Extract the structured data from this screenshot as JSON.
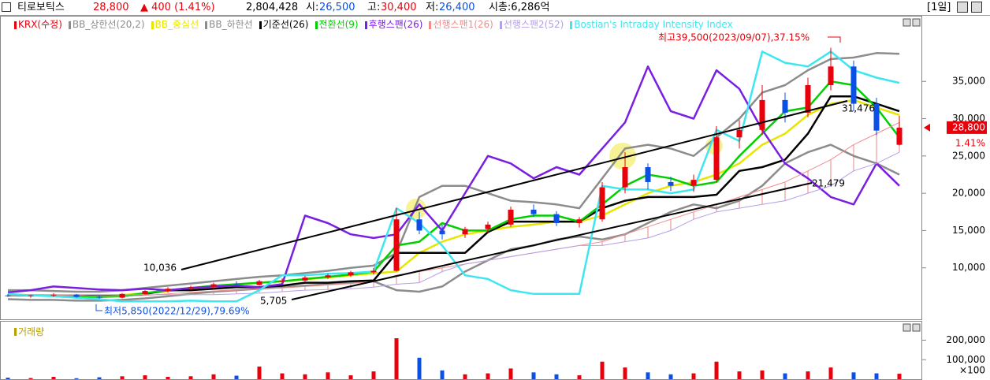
{
  "header": {
    "name": "티로보틱스",
    "price": "28,800",
    "change": "▲ 400 (1.41%)",
    "volume": "2,804,428",
    "open_label": "시:",
    "open": "26,500",
    "high_label": "고:",
    "high": "30,400",
    "low_label": "저:",
    "low": "26,400",
    "cap": "시총:6,286억",
    "period": "[1일]"
  },
  "chart_data": [
    {
      "type": "candlestick",
      "candles": {
        "name": "KRX(수정)",
        "up_color": "#e8000b",
        "down_color": "#0a50e6",
        "open": [
          6300,
          6200,
          6300,
          6400,
          6100,
          6000,
          6500,
          6900,
          7200,
          7400,
          7800,
          7700,
          8200,
          8300,
          8700,
          9000,
          9400,
          9600,
          16500,
          15000,
          14500,
          15200,
          15800,
          17800,
          17200,
          16000,
          16500,
          20800,
          23500,
          21500,
          21000,
          21800,
          27500,
          28500,
          32500,
          30800,
          34500,
          37000,
          32000,
          26500
        ],
        "high": [
          6500,
          6400,
          6600,
          6500,
          6300,
          6600,
          7000,
          7400,
          7600,
          8000,
          8200,
          8400,
          8600,
          8900,
          9200,
          9600,
          10000,
          18000,
          17500,
          15800,
          15500,
          16200,
          18200,
          18500,
          17600,
          16800,
          21500,
          25500,
          24000,
          22200,
          22500,
          29000,
          29800,
          34500,
          33500,
          35500,
          39500,
          37800,
          32800,
          30400
        ],
        "low": [
          6100,
          6000,
          6100,
          6000,
          5850,
          5900,
          6400,
          6700,
          7000,
          7200,
          7500,
          7600,
          7900,
          8100,
          8500,
          8800,
          9100,
          9500,
          14500,
          13800,
          14000,
          14600,
          15500,
          16800,
          15600,
          15400,
          16200,
          20000,
          20500,
          20300,
          20200,
          21500,
          26000,
          27800,
          29500,
          30200,
          33800,
          31000,
          27800,
          26400
        ],
        "close": [
          6200,
          6300,
          6400,
          6100,
          6000,
          6500,
          6900,
          7200,
          7400,
          7800,
          7700,
          8200,
          8300,
          8700,
          9000,
          9400,
          9600,
          16500,
          15000,
          14500,
          15200,
          15800,
          17800,
          17200,
          16000,
          16500,
          20800,
          23500,
          21500,
          21000,
          21800,
          27500,
          28500,
          32500,
          30800,
          34500,
          37000,
          32000,
          28400,
          28800
        ]
      },
      "series": [
        {
          "name": "BB_상한선(20,2)",
          "color": "#8c8c8c",
          "values": [
            7000,
            7000,
            6900,
            6800,
            6800,
            7000,
            7300,
            7600,
            7900,
            8200,
            8500,
            8800,
            9000,
            9300,
            9600,
            10000,
            10300,
            12000,
            19500,
            21000,
            21000,
            20000,
            19000,
            18800,
            18500,
            18000,
            22000,
            26000,
            26500,
            26000,
            25000,
            27500,
            30000,
            33500,
            34500,
            36500,
            38000,
            38200,
            38800,
            38700
          ]
        },
        {
          "name": "BB_중심선",
          "color": "#e6e600",
          "values": [
            6400,
            6350,
            6300,
            6200,
            6200,
            6350,
            6600,
            6900,
            7200,
            7500,
            7750,
            8000,
            8200,
            8450,
            8700,
            9000,
            9250,
            9500,
            12000,
            13500,
            14500,
            15000,
            15500,
            15800,
            16200,
            16200,
            17000,
            18500,
            20000,
            21000,
            21500,
            22500,
            24000,
            26500,
            28000,
            30500,
            32000,
            32500,
            31500,
            30500
          ]
        },
        {
          "name": "BB_하한선",
          "color": "#8c8c8c",
          "values": [
            5800,
            5700,
            5700,
            5600,
            5600,
            5700,
            5900,
            6200,
            6500,
            6800,
            7000,
            7200,
            7400,
            7600,
            7800,
            8000,
            8200,
            7000,
            6800,
            7500,
            9500,
            11000,
            12500,
            13000,
            13800,
            14200,
            13800,
            14500,
            16000,
            17500,
            18500,
            18000,
            19000,
            21000,
            24000,
            25500,
            26500,
            25000,
            24000,
            22500
          ]
        },
        {
          "name": "기준선(26)",
          "color": "#000000",
          "values": [
            6300,
            6300,
            6300,
            6300,
            6200,
            6200,
            6500,
            7000,
            7000,
            7200,
            7400,
            7400,
            7600,
            8000,
            8000,
            8200,
            8300,
            12000,
            12000,
            12000,
            12000,
            14800,
            16200,
            16200,
            16200,
            16200,
            18000,
            19000,
            19500,
            19500,
            19500,
            19800,
            23000,
            23500,
            24500,
            28000,
            33000,
            33000,
            32000,
            31000
          ]
        },
        {
          "name": "전환선(9)",
          "color": "#00d000",
          "values": [
            6300,
            6300,
            6300,
            6200,
            6100,
            6200,
            6600,
            7000,
            7300,
            7600,
            7800,
            8000,
            8200,
            8500,
            8800,
            9100,
            9500,
            13000,
            13500,
            16000,
            15000,
            15000,
            16500,
            17000,
            17000,
            16200,
            18500,
            21000,
            22500,
            22000,
            21000,
            21500,
            25000,
            28000,
            31000,
            31500,
            35000,
            34500,
            31500,
            27500
          ]
        },
        {
          "name": "후행스팬(26)",
          "color": "#7a1ee0",
          "values": [
            6700,
            7000,
            7500,
            7300,
            7100,
            7000,
            7200,
            7000,
            7300,
            7500,
            7600,
            7400,
            7800,
            17000,
            16000,
            14500,
            14000,
            14500,
            18500,
            15000,
            20000,
            25000,
            24000,
            22000,
            23500,
            22500,
            26000,
            29500,
            37000,
            31000,
            30000,
            36500,
            34000,
            28500,
            24000,
            22000,
            19500,
            18500,
            24000,
            21000
          ]
        },
        {
          "name": "선행스팬1(26)",
          "color": "#f08c8c",
          "values": [
            6300,
            6300,
            6300,
            6300,
            6200,
            6200,
            6300,
            6500,
            6700,
            6900,
            7000,
            7200,
            7300,
            7500,
            7700,
            7900,
            8200,
            9000,
            9500,
            10000,
            10500,
            11000,
            11500,
            12000,
            12500,
            13000,
            13500,
            14500,
            15500,
            16500,
            17500,
            18500,
            19500,
            20500,
            21500,
            23000,
            24500,
            26500,
            28000,
            29500
          ]
        },
        {
          "name": "선행스팬2(52)",
          "color": "#b4a0e6",
          "values": [
            6400,
            6400,
            6400,
            6400,
            6400,
            6400,
            6400,
            6400,
            6400,
            6400,
            6500,
            6600,
            6800,
            7000,
            7100,
            7200,
            7400,
            7800,
            8000,
            9500,
            10500,
            11000,
            11500,
            12000,
            12500,
            13000,
            13000,
            13500,
            14000,
            15000,
            16500,
            17500,
            18000,
            18500,
            19000,
            20000,
            21000,
            23000,
            24000,
            25500
          ]
        },
        {
          "name": "Bostian's Intraday Intensity Index",
          "color": "#3ee6f0",
          "values": [
            6500,
            6300,
            6200,
            6000,
            5800,
            5500,
            5500,
            5500,
            5600,
            5500,
            5500,
            7000,
            9000,
            9000,
            9200,
            9300,
            9500,
            18000,
            16000,
            13000,
            9000,
            8500,
            7000,
            6500,
            6500,
            6500,
            21000,
            20500,
            20500,
            20000,
            20500,
            28500,
            27000,
            39000,
            37500,
            37000,
            39000,
            36500,
            35500,
            34800
          ]
        }
      ],
      "ylim": [
        3100,
        43800
      ],
      "yticks": [
        {
          "value": 10000,
          "label": "10,000"
        },
        {
          "value": 15000,
          "label": "15,000"
        },
        {
          "value": 20000,
          "label": "20,000"
        },
        {
          "value": 25000,
          "label": "25,000"
        },
        {
          "value": 30000,
          "label": "30,000"
        },
        {
          "value": 35000,
          "label": "35,000"
        }
      ],
      "grid": false,
      "price_tag": {
        "value": 28800,
        "label": "28,800",
        "change": "1.41%",
        "color": "#e8000b"
      },
      "annotations": [
        {
          "text": "최고39,500(2023/09/07),37.15%",
          "color": "#e8000b"
        },
        {
          "text": "최저5,850(2022/12/29),79.69%",
          "color": "#0a50e6"
        },
        {
          "text": "10,036",
          "color": "#000000"
        },
        {
          "text": "5,705",
          "color": "#000000"
        },
        {
          "text": "21,479",
          "color": "#000000"
        },
        {
          "text": "31,476",
          "color": "#000000"
        }
      ]
    },
    {
      "type": "bar",
      "title": "거래량",
      "title_color": "#b8a000",
      "values": [
        8000,
        6000,
        12000,
        5000,
        10000,
        15000,
        20000,
        12000,
        15000,
        25000,
        18000,
        65000,
        30000,
        25000,
        35000,
        20000,
        40000,
        210000,
        110000,
        45000,
        25000,
        30000,
        55000,
        35000,
        25000,
        20000,
        90000,
        60000,
        35000,
        25000,
        30000,
        90000,
        40000,
        45000,
        30000,
        40000,
        60000,
        35000,
        30000,
        28044
      ],
      "ylim": [
        0,
        295000
      ],
      "yticks": [
        {
          "value": 100000,
          "label": "100,000"
        },
        {
          "value": 200000,
          "label": "200,000"
        }
      ],
      "unit_label": "×100"
    }
  ]
}
